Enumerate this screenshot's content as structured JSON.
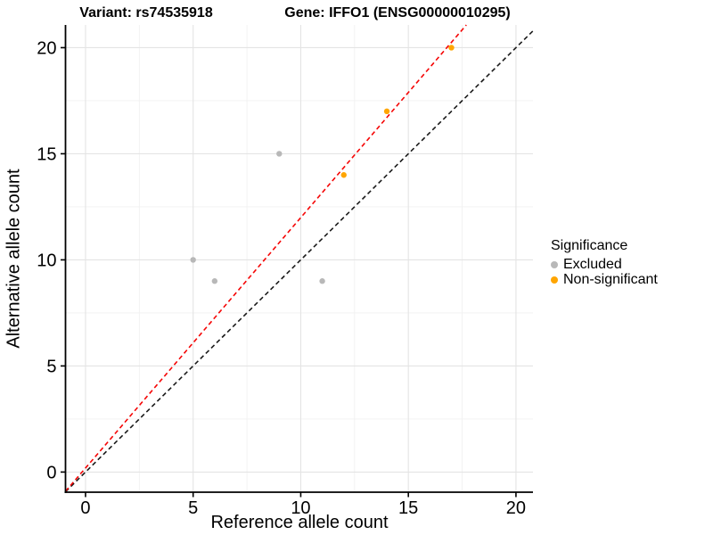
{
  "titles": {
    "variant": "Variant: rs74535918",
    "gene": "Gene: IFFO1 (ENSG00000010295)"
  },
  "chart_data": {
    "type": "scatter",
    "xlabel": "Reference allele count",
    "ylabel": "Alternative allele count",
    "xlim": [
      -0.93,
      20.79
    ],
    "ylim": [
      -0.95,
      21.07
    ],
    "xticks": [
      0,
      5,
      10,
      15,
      20
    ],
    "yticks": [
      0,
      5,
      10,
      15,
      20
    ],
    "xminor": [
      2.5,
      7.5,
      12.5,
      17.5
    ],
    "yminor": [
      2.5,
      7.5,
      12.5,
      17.5
    ],
    "grid": "major and minor on, white panel",
    "legend_position": "right",
    "series": [
      {
        "name": "Excluded",
        "color": "#B8B8B8",
        "points": [
          [
            5,
            10
          ],
          [
            6,
            9
          ],
          [
            9,
            15
          ],
          [
            11,
            9
          ]
        ]
      },
      {
        "name": "Non-significant",
        "color": "#FFA500",
        "points": [
          [
            12,
            14
          ],
          [
            14,
            17
          ],
          [
            17,
            20
          ]
        ]
      }
    ],
    "lines": [
      {
        "name": "identity-line",
        "slope": 1,
        "intercept": 0,
        "color": "#1A1A1A",
        "style": "dashed"
      },
      {
        "name": "fit-line",
        "slope": 1.18,
        "intercept": 0.19,
        "color": "#F50505",
        "style": "dashed"
      }
    ]
  },
  "legend": {
    "title": "Significance",
    "items": [
      {
        "label": "Excluded",
        "color": "#B8B8B8"
      },
      {
        "label": "Non-significant",
        "color": "#FFA500"
      }
    ]
  },
  "style_colors": {
    "accent_red": "#F50505",
    "point_orange": "#FFA500",
    "point_gray": "#B8B8B8",
    "major_grid": "#E4E4E4",
    "minor_grid": "#F1F1F1",
    "axis_line": "#000000"
  }
}
